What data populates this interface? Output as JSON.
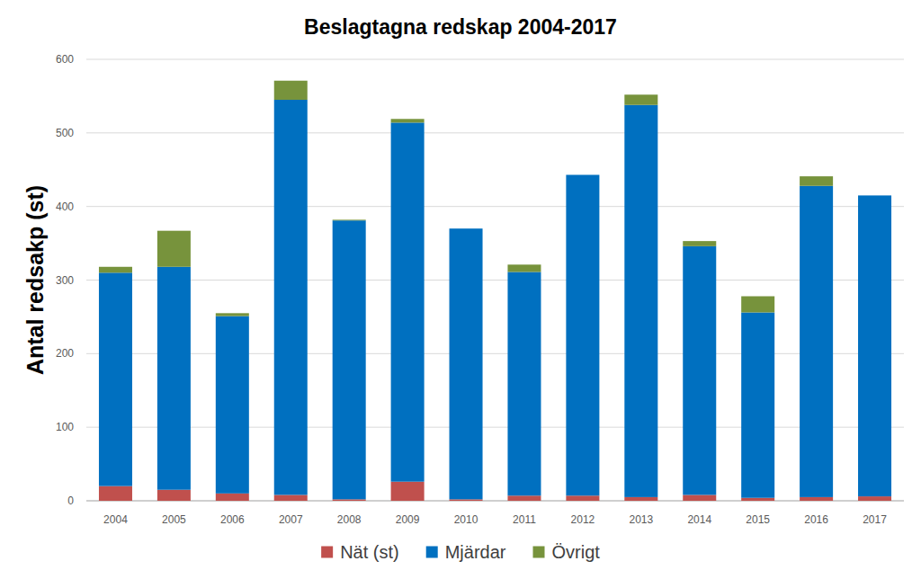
{
  "chart_data": {
    "type": "bar",
    "title": "Beslagtagna redskap 2004-2017",
    "y_label": "Antal redsakp (st)",
    "categories": [
      "2004",
      "2005",
      "2006",
      "2007",
      "2008",
      "2009",
      "2010",
      "2011",
      "2012",
      "2013",
      "2014",
      "2015",
      "2016",
      "2017"
    ],
    "series": [
      {
        "name": "Nät (st)",
        "color": "#c0504d",
        "values": [
          20,
          15,
          10,
          8,
          2,
          26,
          2,
          7,
          7,
          5,
          8,
          4,
          5,
          6
        ]
      },
      {
        "name": "Mjärdar",
        "color": "#0070c0",
        "values": [
          290,
          303,
          241,
          537,
          379,
          488,
          368,
          304,
          436,
          533,
          338,
          252,
          423,
          409
        ]
      },
      {
        "name": "Övrigt",
        "color": "#77933c",
        "values": [
          8,
          49,
          4,
          26,
          1,
          5,
          0,
          10,
          0,
          14,
          7,
          22,
          13,
          0
        ]
      }
    ],
    "ylim": [
      0,
      600
    ],
    "yticks": [
      0,
      100,
      200,
      300,
      400,
      500,
      600
    ],
    "stacked": true,
    "grid": true,
    "legend": "bottom"
  }
}
